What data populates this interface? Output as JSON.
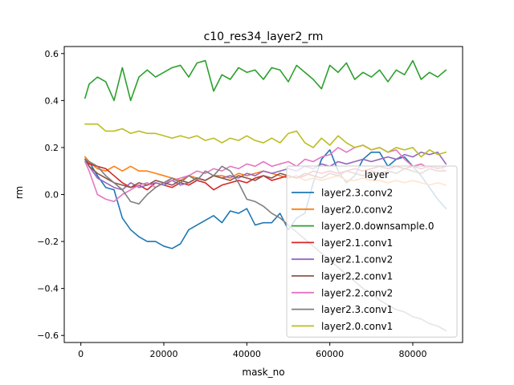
{
  "chart_data": {
    "type": "line",
    "title": "c10_res34_layer2_rm",
    "xlabel": "mask_no",
    "ylabel": "rm",
    "xlim": [
      -4000,
      92000
    ],
    "ylim": [
      -0.63,
      0.63
    ],
    "x_ticks": [
      0,
      20000,
      40000,
      60000,
      80000
    ],
    "x_tick_labels": [
      "0",
      "20000",
      "40000",
      "60000",
      "80000"
    ],
    "y_ticks": [
      -0.6,
      -0.4,
      -0.2,
      0.0,
      0.2,
      0.4,
      0.6
    ],
    "y_tick_labels": [
      "−0.6",
      "−0.4",
      "−0.2",
      "0.0",
      "0.2",
      "0.4",
      "0.6"
    ],
    "grid": false,
    "legend": {
      "title": "layer",
      "placement": "lower-right"
    },
    "series": [
      {
        "name": "layer2.3.conv2",
        "color": "#1f77b4",
        "x": [
          1000,
          2000,
          4000,
          6000,
          8000,
          10000,
          12000,
          14000,
          16000,
          18000,
          20000,
          22000,
          24000,
          26000,
          28000,
          30000,
          32000,
          34000,
          36000,
          38000,
          40000,
          42000,
          44000,
          46000,
          48000,
          50000,
          52000,
          54000,
          56000,
          58000,
          60000,
          62000,
          64000,
          66000,
          68000,
          70000,
          72000,
          74000,
          76000,
          78000,
          80000,
          82000,
          84000,
          86000,
          88000
        ],
        "y": [
          0.16,
          0.14,
          0.08,
          0.03,
          0.02,
          -0.1,
          -0.15,
          -0.18,
          -0.2,
          -0.2,
          -0.22,
          -0.23,
          -0.21,
          -0.15,
          -0.13,
          -0.11,
          -0.09,
          -0.12,
          -0.07,
          -0.08,
          -0.06,
          -0.13,
          -0.12,
          -0.12,
          -0.08,
          -0.15,
          -0.1,
          -0.08,
          0.05,
          0.15,
          0.19,
          0.1,
          0.05,
          0.08,
          0.15,
          0.18,
          0.18,
          0.12,
          0.15,
          0.16,
          0.12,
          0.08,
          0.03,
          -0.02,
          -0.06
        ]
      },
      {
        "name": "layer2.0.conv2",
        "color": "#ff7f0e",
        "x": [
          1000,
          2000,
          4000,
          6000,
          8000,
          10000,
          12000,
          14000,
          16000,
          18000,
          20000,
          22000,
          24000,
          26000,
          28000,
          30000,
          32000,
          34000,
          36000,
          38000,
          40000,
          42000,
          44000,
          46000,
          48000,
          50000,
          52000,
          54000,
          56000,
          58000,
          60000,
          62000,
          64000,
          66000,
          68000,
          70000,
          72000,
          74000,
          76000,
          78000,
          80000,
          82000,
          84000,
          86000,
          88000
        ],
        "y": [
          0.16,
          0.14,
          0.11,
          0.1,
          0.12,
          0.1,
          0.12,
          0.1,
          0.1,
          0.09,
          0.08,
          0.07,
          0.06,
          0.08,
          0.07,
          0.06,
          0.08,
          0.08,
          0.07,
          0.09,
          0.08,
          0.09,
          0.1,
          0.09,
          0.08,
          0.07,
          0.08,
          0.06,
          0.07,
          0.06,
          0.07,
          0.08,
          0.06,
          0.06,
          0.07,
          0.06,
          0.06,
          0.05,
          0.06,
          0.05,
          0.06,
          0.05,
          0.04,
          0.05,
          0.04
        ]
      },
      {
        "name": "layer2.0.downsample.0",
        "color": "#2ca02c",
        "x": [
          1000,
          2000,
          4000,
          6000,
          8000,
          10000,
          12000,
          14000,
          16000,
          18000,
          20000,
          22000,
          24000,
          26000,
          28000,
          30000,
          32000,
          34000,
          36000,
          38000,
          40000,
          42000,
          44000,
          46000,
          48000,
          50000,
          52000,
          54000,
          56000,
          58000,
          60000,
          62000,
          64000,
          66000,
          68000,
          70000,
          72000,
          74000,
          76000,
          78000,
          80000,
          82000,
          84000,
          86000,
          88000
        ],
        "y": [
          0.41,
          0.47,
          0.5,
          0.48,
          0.4,
          0.54,
          0.4,
          0.5,
          0.53,
          0.5,
          0.52,
          0.54,
          0.55,
          0.5,
          0.56,
          0.57,
          0.44,
          0.51,
          0.49,
          0.54,
          0.52,
          0.53,
          0.49,
          0.54,
          0.53,
          0.48,
          0.55,
          0.52,
          0.49,
          0.45,
          0.55,
          0.52,
          0.56,
          0.49,
          0.52,
          0.5,
          0.53,
          0.48,
          0.53,
          0.51,
          0.57,
          0.49,
          0.52,
          0.5,
          0.53
        ]
      },
      {
        "name": "layer2.1.conv1",
        "color": "#d62728",
        "x": [
          1000,
          2000,
          4000,
          6000,
          8000,
          10000,
          12000,
          14000,
          16000,
          18000,
          20000,
          22000,
          24000,
          26000,
          28000,
          30000,
          32000,
          34000,
          36000,
          38000,
          40000,
          42000,
          44000,
          46000,
          48000,
          50000,
          52000,
          54000,
          56000,
          58000,
          60000,
          62000,
          64000,
          66000,
          68000,
          70000,
          72000,
          74000,
          76000,
          78000,
          80000,
          82000,
          84000,
          86000,
          88000
        ],
        "y": [
          0.15,
          0.13,
          0.12,
          0.11,
          0.08,
          0.05,
          0.03,
          0.04,
          0.02,
          0.05,
          0.04,
          0.03,
          0.05,
          0.04,
          0.06,
          0.05,
          0.02,
          0.04,
          0.05,
          0.06,
          0.05,
          0.07,
          0.08,
          0.06,
          0.07,
          0.08,
          0.07,
          0.08,
          0.1,
          0.09,
          0.1,
          0.09,
          0.1,
          0.11,
          0.1,
          0.11,
          0.12,
          0.11,
          0.12,
          0.11,
          0.12,
          0.11,
          0.12,
          0.11,
          0.12
        ]
      },
      {
        "name": "layer2.1.conv2",
        "color": "#9467bd",
        "x": [
          1000,
          2000,
          4000,
          6000,
          8000,
          10000,
          12000,
          14000,
          16000,
          18000,
          20000,
          22000,
          24000,
          26000,
          28000,
          30000,
          32000,
          34000,
          36000,
          38000,
          40000,
          42000,
          44000,
          46000,
          48000,
          50000,
          52000,
          54000,
          56000,
          58000,
          60000,
          62000,
          64000,
          66000,
          68000,
          70000,
          72000,
          74000,
          76000,
          78000,
          80000,
          82000,
          84000,
          86000,
          88000
        ],
        "y": [
          0.15,
          0.12,
          0.07,
          0.05,
          0.03,
          0.02,
          0.05,
          0.03,
          0.04,
          0.05,
          0.04,
          0.06,
          0.04,
          0.05,
          0.07,
          0.06,
          0.08,
          0.07,
          0.08,
          0.07,
          0.09,
          0.08,
          0.1,
          0.09,
          0.1,
          0.11,
          0.1,
          0.12,
          0.11,
          0.13,
          0.12,
          0.14,
          0.13,
          0.14,
          0.15,
          0.14,
          0.15,
          0.16,
          0.15,
          0.17,
          0.16,
          0.18,
          0.17,
          0.18,
          0.13
        ]
      },
      {
        "name": "layer2.2.conv1",
        "color": "#8c564b",
        "x": [
          1000,
          2000,
          4000,
          6000,
          8000,
          10000,
          12000,
          14000,
          16000,
          18000,
          20000,
          22000,
          24000,
          26000,
          28000,
          30000,
          32000,
          34000,
          36000,
          38000,
          40000,
          42000,
          44000,
          46000,
          48000,
          50000,
          52000,
          54000,
          56000,
          58000,
          60000,
          62000,
          64000,
          66000,
          68000,
          70000,
          72000,
          74000,
          76000,
          78000,
          80000,
          82000,
          84000,
          86000,
          88000
        ],
        "y": [
          0.15,
          0.12,
          0.09,
          0.07,
          0.05,
          0.04,
          0.03,
          0.05,
          0.04,
          0.06,
          0.05,
          0.04,
          0.06,
          0.05,
          0.07,
          0.06,
          0.08,
          0.07,
          0.06,
          0.08,
          0.07,
          0.06,
          0.08,
          0.07,
          0.09,
          0.08,
          0.07,
          0.09,
          0.08,
          0.07,
          0.09,
          0.08,
          0.1,
          0.09,
          0.08,
          0.1,
          0.09,
          0.1,
          0.09,
          0.11,
          0.1,
          0.09,
          0.11,
          0.1,
          0.1
        ]
      },
      {
        "name": "layer2.2.conv2",
        "color": "#e377c2",
        "x": [
          1000,
          2000,
          4000,
          6000,
          8000,
          10000,
          12000,
          14000,
          16000,
          18000,
          20000,
          22000,
          24000,
          26000,
          28000,
          30000,
          32000,
          34000,
          36000,
          38000,
          40000,
          42000,
          44000,
          46000,
          48000,
          50000,
          52000,
          54000,
          56000,
          58000,
          60000,
          62000,
          64000,
          66000,
          68000,
          70000,
          72000,
          74000,
          76000,
          78000,
          80000,
          82000,
          84000,
          86000,
          88000
        ],
        "y": [
          0.14,
          0.1,
          0.0,
          -0.02,
          -0.03,
          0.0,
          0.02,
          0.04,
          0.05,
          0.03,
          0.05,
          0.06,
          0.07,
          0.08,
          0.1,
          0.09,
          0.11,
          0.1,
          0.12,
          0.11,
          0.13,
          0.12,
          0.14,
          0.12,
          0.13,
          0.14,
          0.12,
          0.15,
          0.14,
          0.16,
          0.17,
          0.2,
          0.18,
          0.2,
          0.21,
          0.19,
          0.2,
          0.18,
          0.19,
          0.15,
          0.12,
          0.13,
          0.11,
          0.12,
          0.1
        ]
      },
      {
        "name": "layer2.3.conv1",
        "color": "#7f7f7f",
        "x": [
          1000,
          2000,
          4000,
          6000,
          8000,
          10000,
          12000,
          14000,
          16000,
          18000,
          20000,
          22000,
          24000,
          26000,
          28000,
          30000,
          32000,
          34000,
          36000,
          38000,
          40000,
          42000,
          44000,
          46000,
          48000,
          50000,
          52000,
          54000,
          56000,
          58000,
          60000,
          62000,
          64000,
          66000,
          68000,
          70000,
          72000,
          74000,
          76000,
          78000,
          80000,
          82000,
          84000,
          86000,
          88000
        ],
        "y": [
          0.15,
          0.14,
          0.12,
          0.08,
          0.05,
          0.02,
          -0.03,
          -0.04,
          0.0,
          0.03,
          0.05,
          0.07,
          0.05,
          0.08,
          0.06,
          0.1,
          0.08,
          0.12,
          0.1,
          0.05,
          -0.02,
          -0.03,
          -0.05,
          -0.08,
          -0.1,
          -0.13,
          -0.16,
          -0.19,
          -0.22,
          -0.25,
          -0.28,
          -0.31,
          -0.34,
          -0.37,
          -0.4,
          -0.42,
          -0.45,
          -0.47,
          -0.49,
          -0.5,
          -0.52,
          -0.53,
          -0.55,
          -0.56,
          -0.58
        ]
      },
      {
        "name": "layer2.0.conv1",
        "color": "#bcbd22",
        "x": [
          1000,
          2000,
          4000,
          6000,
          8000,
          10000,
          12000,
          14000,
          16000,
          18000,
          20000,
          22000,
          24000,
          26000,
          28000,
          30000,
          32000,
          34000,
          36000,
          38000,
          40000,
          42000,
          44000,
          46000,
          48000,
          50000,
          52000,
          54000,
          56000,
          58000,
          60000,
          62000,
          64000,
          66000,
          68000,
          70000,
          72000,
          74000,
          76000,
          78000,
          80000,
          82000,
          84000,
          86000,
          88000
        ],
        "y": [
          0.3,
          0.3,
          0.3,
          0.27,
          0.27,
          0.28,
          0.26,
          0.27,
          0.26,
          0.26,
          0.25,
          0.24,
          0.25,
          0.24,
          0.25,
          0.23,
          0.24,
          0.22,
          0.24,
          0.23,
          0.25,
          0.23,
          0.22,
          0.24,
          0.22,
          0.26,
          0.27,
          0.22,
          0.2,
          0.24,
          0.21,
          0.25,
          0.22,
          0.2,
          0.21,
          0.19,
          0.2,
          0.18,
          0.2,
          0.19,
          0.2,
          0.16,
          0.19,
          0.17,
          0.18
        ]
      }
    ]
  }
}
